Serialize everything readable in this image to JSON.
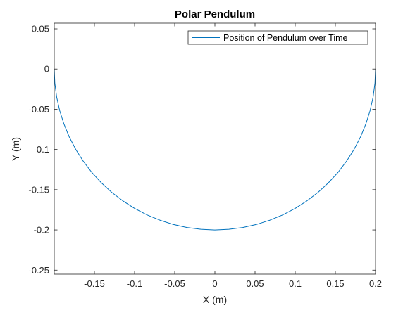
{
  "chart_data": {
    "type": "line",
    "title": "Polar Pendulum",
    "xlabel": "X (m)",
    "ylabel": "Y (m)",
    "xlim": [
      -0.2,
      0.2
    ],
    "ylim": [
      -0.255,
      0.057
    ],
    "xticks": [
      -0.15,
      -0.1,
      -0.05,
      0,
      0.05,
      0.1,
      0.15,
      0.2
    ],
    "xtick_labels": [
      "-0.15",
      "-0.1",
      "-0.05",
      "0",
      "0.05",
      "0.1",
      "0.15",
      "0.2"
    ],
    "yticks": [
      0.05,
      0,
      -0.05,
      -0.1,
      -0.15,
      -0.2,
      -0.25
    ],
    "ytick_labels": [
      "0.05",
      "0",
      "-0.05",
      "-0.1",
      "-0.15",
      "-0.2",
      "-0.25"
    ],
    "grid": false,
    "legend_position": "top-right",
    "series": [
      {
        "name": "Position of Pendulum over Time",
        "color": "#0072bd",
        "x": [
          -0.2,
          -0.1993,
          -0.197,
          -0.1932,
          -0.1879,
          -0.1813,
          -0.1732,
          -0.1638,
          -0.1532,
          -0.1414,
          -0.1286,
          -0.1147,
          -0.1,
          -0.0845,
          -0.0684,
          -0.0518,
          -0.0347,
          -0.0174,
          0.0,
          0.0174,
          0.0347,
          0.0518,
          0.0684,
          0.0845,
          0.1,
          0.1147,
          0.1286,
          0.1414,
          0.1532,
          0.1638,
          0.1732,
          0.1813,
          0.1879,
          0.1932,
          0.197,
          0.1993,
          0.2
        ],
        "y": [
          0.0,
          -0.0174,
          -0.0347,
          -0.0518,
          -0.0684,
          -0.0845,
          -0.1,
          -0.1147,
          -0.1286,
          -0.1414,
          -0.1532,
          -0.1638,
          -0.1732,
          -0.1813,
          -0.1879,
          -0.1932,
          -0.197,
          -0.1992,
          -0.2,
          -0.1992,
          -0.197,
          -0.1932,
          -0.1879,
          -0.1813,
          -0.1732,
          -0.1638,
          -0.1532,
          -0.1414,
          -0.1286,
          -0.1147,
          -0.1,
          -0.0845,
          -0.0684,
          -0.0518,
          -0.0347,
          -0.0174,
          0.0
        ]
      }
    ]
  }
}
